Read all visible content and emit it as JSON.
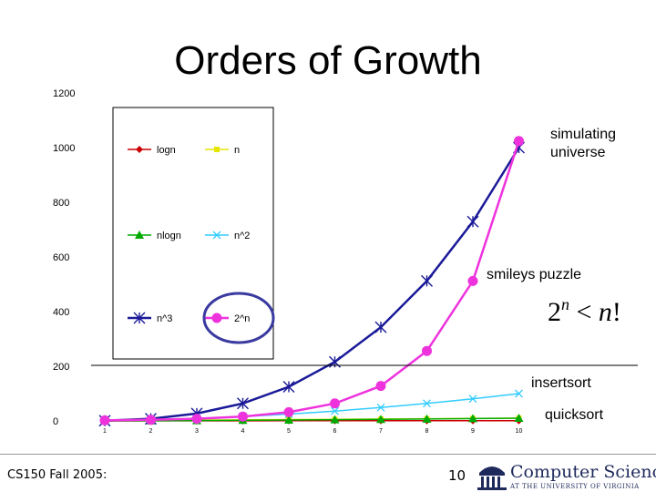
{
  "slide": {
    "title": "Orders of Growth",
    "footer_left": "CS150 Fall 2005:",
    "page_number": "10",
    "logo_title": "Computer Science",
    "logo_subtitle": "AT THE UNIVERSITY OF VIRGINIA"
  },
  "chart_data": {
    "type": "line",
    "title": "",
    "xlabel": "",
    "ylabel": "",
    "x": [
      1,
      2,
      3,
      4,
      5,
      6,
      7,
      8,
      9,
      10
    ],
    "xtick_labels": [
      "1",
      "2",
      "3",
      "4",
      "5",
      "6",
      "7",
      "8",
      "9",
      "10"
    ],
    "ylim": [
      0,
      1200
    ],
    "yticks": [
      0,
      200,
      400,
      600,
      800,
      1000,
      1200
    ],
    "grid": false,
    "legend_placement": "upper-left",
    "series": [
      {
        "name": "logn",
        "color": "#cc0000",
        "marker": "diamond",
        "values": [
          0,
          0.3,
          0.48,
          0.6,
          0.7,
          0.78,
          0.85,
          0.9,
          0.95,
          1
        ]
      },
      {
        "name": "n",
        "color": "#e6e600",
        "marker": "square",
        "values": [
          1,
          2,
          3,
          4,
          5,
          6,
          7,
          8,
          9,
          10
        ]
      },
      {
        "name": "nlogn",
        "color": "#00aa00",
        "marker": "triangle",
        "values": [
          0,
          0.6,
          1.4,
          2.4,
          3.5,
          4.7,
          5.9,
          7.2,
          8.6,
          10
        ]
      },
      {
        "name": "n^2",
        "color": "#33ccff",
        "marker": "x",
        "values": [
          1,
          4,
          9,
          16,
          25,
          36,
          49,
          64,
          81,
          100
        ]
      },
      {
        "name": "n^3",
        "color": "#1a1a99",
        "marker": "star",
        "values": [
          1,
          8,
          27,
          64,
          125,
          216,
          343,
          512,
          729,
          1000
        ]
      },
      {
        "name": "2^n",
        "color": "#ee33dd",
        "marker": "circle",
        "values": [
          2,
          4,
          8,
          16,
          32,
          64,
          128,
          256,
          512,
          1024
        ]
      }
    ],
    "annotations": {
      "simulating_universe": "simulating universe",
      "simulating_line1": "simulating",
      "simulating_line2": "universe",
      "smileys": "smileys puzzle",
      "inequality": "2n < n!",
      "insertsort": "insertsort",
      "quicksort": "quicksort"
    }
  }
}
